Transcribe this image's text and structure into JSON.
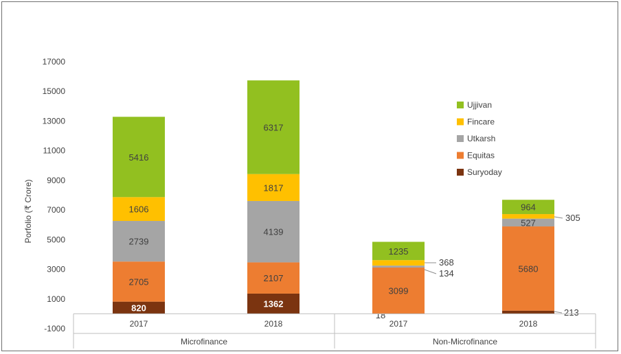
{
  "chart_data": {
    "type": "bar",
    "stacked": true,
    "ylabel": "Porfolio (₹ Crore)",
    "ylim": [
      -1000,
      17000
    ],
    "yticks": [
      -1000,
      1000,
      3000,
      5000,
      7000,
      9000,
      11000,
      13000,
      15000,
      17000
    ],
    "grid": false,
    "legend_position": "right",
    "groups": [
      {
        "label": "Microfinance",
        "categories": [
          "2017",
          "2018"
        ]
      },
      {
        "label": "Non-Microfinance",
        "categories": [
          "2017",
          "2018"
        ]
      }
    ],
    "categories": [
      "2017",
      "2018",
      "2017",
      "2018"
    ],
    "series": [
      {
        "name": "Suryoday",
        "color": "#7b3410",
        "values": [
          820,
          1362,
          18,
          213
        ]
      },
      {
        "name": "Equitas",
        "color": "#ed7d31",
        "values": [
          2705,
          2107,
          3099,
          5680
        ]
      },
      {
        "name": "Utkarsh",
        "color": "#a5a5a5",
        "values": [
          2739,
          4139,
          134,
          527
        ]
      },
      {
        "name": "Fincare",
        "color": "#ffc000",
        "values": [
          1606,
          1817,
          368,
          305
        ]
      },
      {
        "name": "Ujjivan",
        "color": "#92c020",
        "values": [
          5416,
          6317,
          1235,
          964
        ]
      }
    ]
  }
}
